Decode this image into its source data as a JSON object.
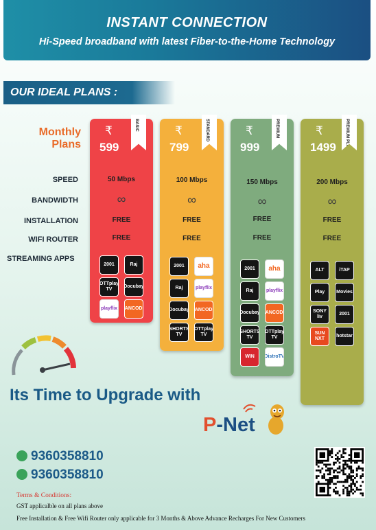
{
  "banner": {
    "title": "INSTANT CONNECTION",
    "subtitle": "Hi-Speed broadband with latest Fiber-to-the-Home Technology"
  },
  "section_title": "OUR IDEAL PLANS :",
  "monthly_label": "Monthly Plans",
  "row_labels": {
    "speed": "SPEED",
    "bandwidth": "BANDWIDTH",
    "installation": "INSTALLATION",
    "wifi_router": "WIFI ROUTER",
    "streaming_apps": "STREAMING APPS"
  },
  "currency_symbol": "₹",
  "plans": [
    {
      "name": "BASIC",
      "price": "599",
      "speed": "50 Mbps",
      "bandwidth_icon": "infinity-icon",
      "installation": "FREE",
      "wifi_router": "FREE",
      "color": "#ef4347",
      "apps": [
        "2001",
        "Raj",
        "OTTplay TV",
        "Docubay",
        "playflix",
        "FANCODE"
      ]
    },
    {
      "name": "STANDARD",
      "price": "799",
      "speed": "100 Mbps",
      "bandwidth_icon": "infinity-icon",
      "installation": "FREE",
      "wifi_router": "FREE",
      "color": "#f4b03c",
      "apps": [
        "2001",
        "aha",
        "Raj",
        "playflix",
        "Docubay",
        "FANCODE",
        "SHORTS TV",
        "OTTplay TV"
      ]
    },
    {
      "name": "PREMIUM",
      "price": "999",
      "speed": "150 Mbps",
      "bandwidth_icon": "infinity-icon",
      "installation": "FREE",
      "wifi_router": "FREE",
      "color": "#7fab7e",
      "apps": [
        "2001",
        "aha",
        "Raj",
        "playflix",
        "Docubay",
        "FANCODE",
        "SHORTS TV",
        "OTTplay TV",
        "WIN",
        "DistroTV"
      ]
    },
    {
      "name": "PREMIUM PLUS",
      "price": "1499",
      "speed": "200 Mbps",
      "bandwidth_icon": "infinity-icon",
      "installation": "FREE",
      "wifi_router": "FREE",
      "color": "#a9ad4b",
      "apps": [
        "ALT",
        "iTAP",
        "Play",
        "Movies",
        "SONY liv",
        "2001",
        "SUN NXT",
        "hotstar"
      ]
    }
  ],
  "upgrade_text": "Its Time to Upgrade with",
  "brand": {
    "p": "P",
    "dash": "-",
    "rest": "Net"
  },
  "phones": [
    "9360358810",
    "9360358810"
  ],
  "terms": {
    "title": "Terms & Conditions:",
    "lines": [
      "GST applicalble on all plans above",
      "Free Installation & Free Wifi Router only applicable for 3 Months & Above Advance Recharges For New Customers"
    ]
  },
  "colors": {
    "accent_blue": "#1a5a86",
    "orange": "#e96c2a",
    "phone_icon_green": "#3aa35a"
  }
}
